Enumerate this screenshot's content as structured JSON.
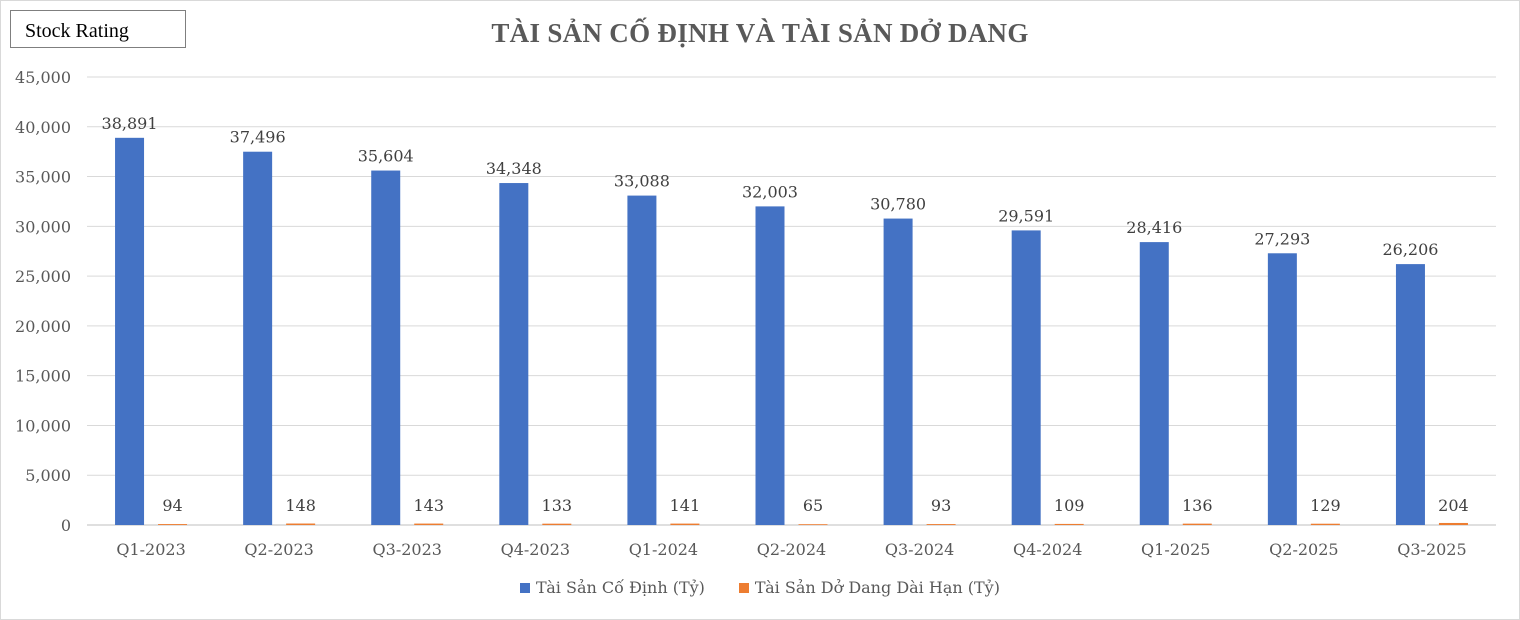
{
  "badge": {
    "label": "Stock Rating"
  },
  "chart_data": {
    "type": "bar",
    "title": "TÀI SẢN CỐ ĐỊNH VÀ  TÀI SẢN DỞ DANG",
    "xlabel": "",
    "ylabel": "",
    "ylim": [
      0,
      45000
    ],
    "yticks": [
      "0",
      "5,000",
      "10,000",
      "15,000",
      "20,000",
      "25,000",
      "30,000",
      "35,000",
      "40,000",
      "45,000"
    ],
    "grid": true,
    "legend_position": "bottom",
    "categories": [
      "Q1-2023",
      "Q2-2023",
      "Q3-2023",
      "Q4-2023",
      "Q1-2024",
      "Q2-2024",
      "Q3-2024",
      "Q4-2024",
      "Q1-2025",
      "Q2-2025",
      "Q3-2025"
    ],
    "series": [
      {
        "name": "Tài Sản Cố Định (Tỷ)",
        "color": "#4472c4",
        "values": [
          38891,
          37496,
          35604,
          34348,
          33088,
          32003,
          30780,
          29591,
          28416,
          27293,
          26206
        ],
        "labels": [
          "38,891",
          "37,496",
          "35,604",
          "34,348",
          "33,088",
          "32,003",
          "30,780",
          "29,591",
          "28,416",
          "27,293",
          "26,206"
        ]
      },
      {
        "name": "Tài Sản Dở Dang Dài Hạn (Tỷ)",
        "color": "#ed7d31",
        "values": [
          94,
          148,
          143,
          133,
          141,
          65,
          93,
          109,
          136,
          129,
          204
        ],
        "labels": [
          "94",
          "148",
          "143",
          "133",
          "141",
          "65",
          "93",
          "109",
          "136",
          "129",
          "204"
        ]
      }
    ]
  }
}
